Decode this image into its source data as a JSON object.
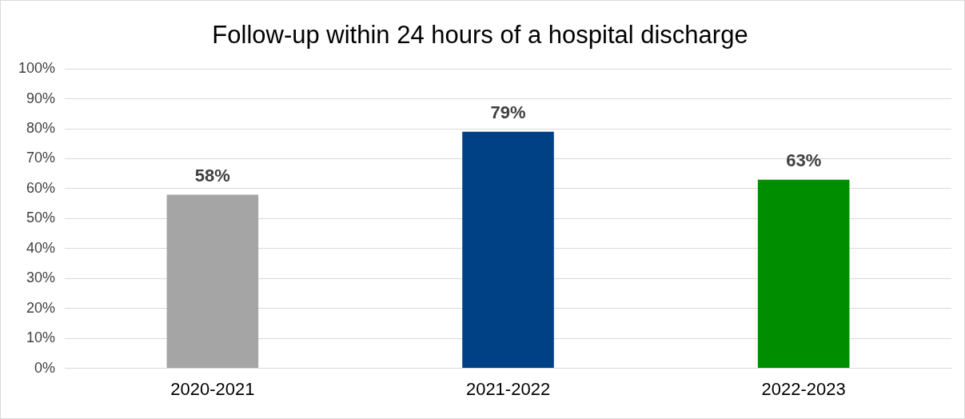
{
  "chart_data": {
    "type": "bar",
    "title": "Follow-up within 24 hours of a hospital discharge",
    "categories": [
      "2020-2021",
      "2021-2022",
      "2022-2023"
    ],
    "values": [
      58,
      79,
      63
    ],
    "colors": [
      "#a5a5a5",
      "#004185",
      "#008e00"
    ],
    "value_labels": [
      "58%",
      "79%",
      "63%"
    ],
    "ylim": [
      0,
      100
    ],
    "yticks": [
      {
        "value": 0,
        "label": "0%"
      },
      {
        "value": 10,
        "label": "10%"
      },
      {
        "value": 20,
        "label": "20%"
      },
      {
        "value": 30,
        "label": "30%"
      },
      {
        "value": 40,
        "label": "40%"
      },
      {
        "value": 50,
        "label": "50%"
      },
      {
        "value": 60,
        "label": "60%"
      },
      {
        "value": 70,
        "label": "70%"
      },
      {
        "value": 80,
        "label": "80%"
      },
      {
        "value": 90,
        "label": "90%"
      },
      {
        "value": 100,
        "label": "100%"
      }
    ],
    "grid": "y",
    "legend": false
  }
}
